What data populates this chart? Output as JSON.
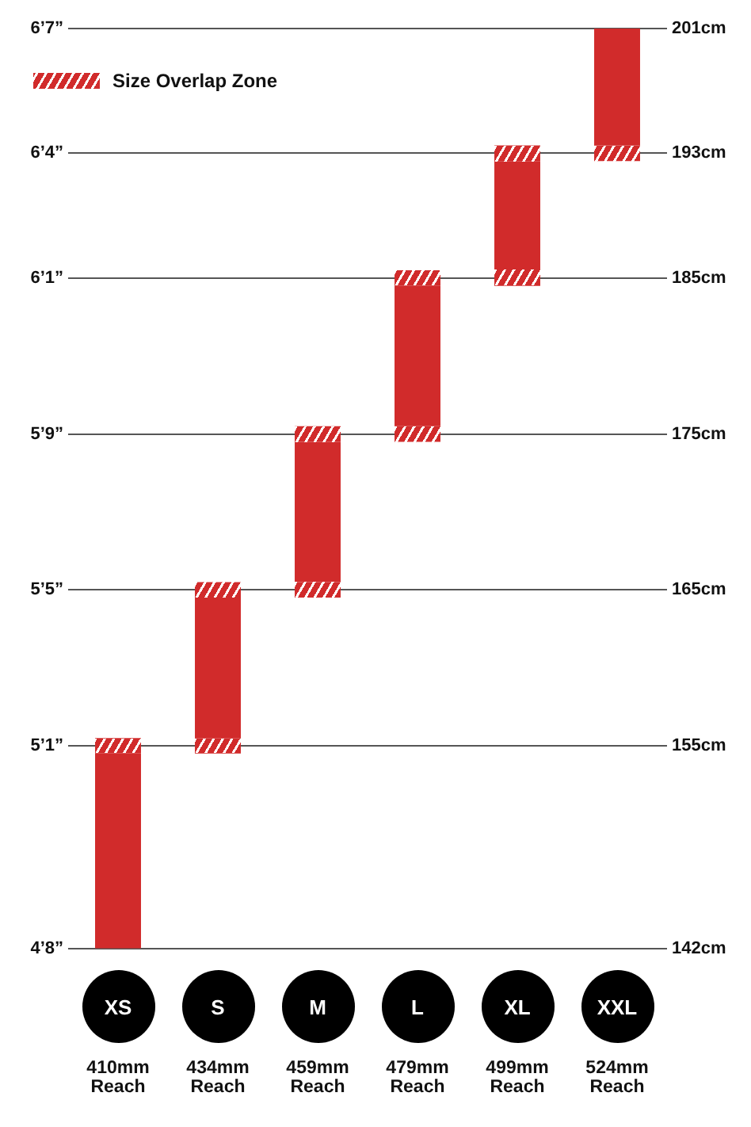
{
  "chart_data": {
    "type": "bar",
    "categories": [
      "XS",
      "S",
      "M",
      "L",
      "XL",
      "XXL"
    ],
    "series": [
      {
        "values": [
          12.5,
          9,
          9,
          9,
          7,
          7.5
        ],
        "base": [
          142,
          155.5,
          165.5,
          175.5,
          185.5,
          193.5
        ],
        "color": "#d12b2b"
      },
      {
        "name": "Size Overlap Zone",
        "values": [
          1,
          1,
          1,
          1,
          1,
          null
        ],
        "base": [
          154.5,
          164.5,
          174.5,
          184.5,
          192.5,
          null
        ],
        "color": "#d12b2b"
      },
      {
        "values": [
          null,
          1,
          1,
          1,
          1,
          1
        ],
        "base": [
          null,
          154.5,
          164.5,
          174.5,
          184.5,
          192.5
        ],
        "color": "#d12b2b"
      }
    ],
    "ylim": [
      142,
      201
    ],
    "yticks": [
      {
        "value": 142,
        "label": "142cm"
      },
      {
        "value": 155,
        "label": "155cm"
      },
      {
        "value": 165,
        "label": "165cm"
      },
      {
        "value": 175,
        "label": "175cm"
      },
      {
        "value": 185,
        "label": "185cm"
      },
      {
        "value": 193,
        "label": "193cm"
      },
      {
        "value": 201,
        "label": "201cm"
      }
    ],
    "grid": "y",
    "legend": "top left",
    "annotations": [
      "4’8”",
      "5’1”",
      "5’5”",
      "5’9”",
      "6’1”",
      "6’4”",
      "6’7”",
      "410mm Reach",
      "434mm Reach",
      "459mm Reach",
      "479mm Reach",
      "499mm Reach",
      "524mm Reach"
    ]
  }
}
